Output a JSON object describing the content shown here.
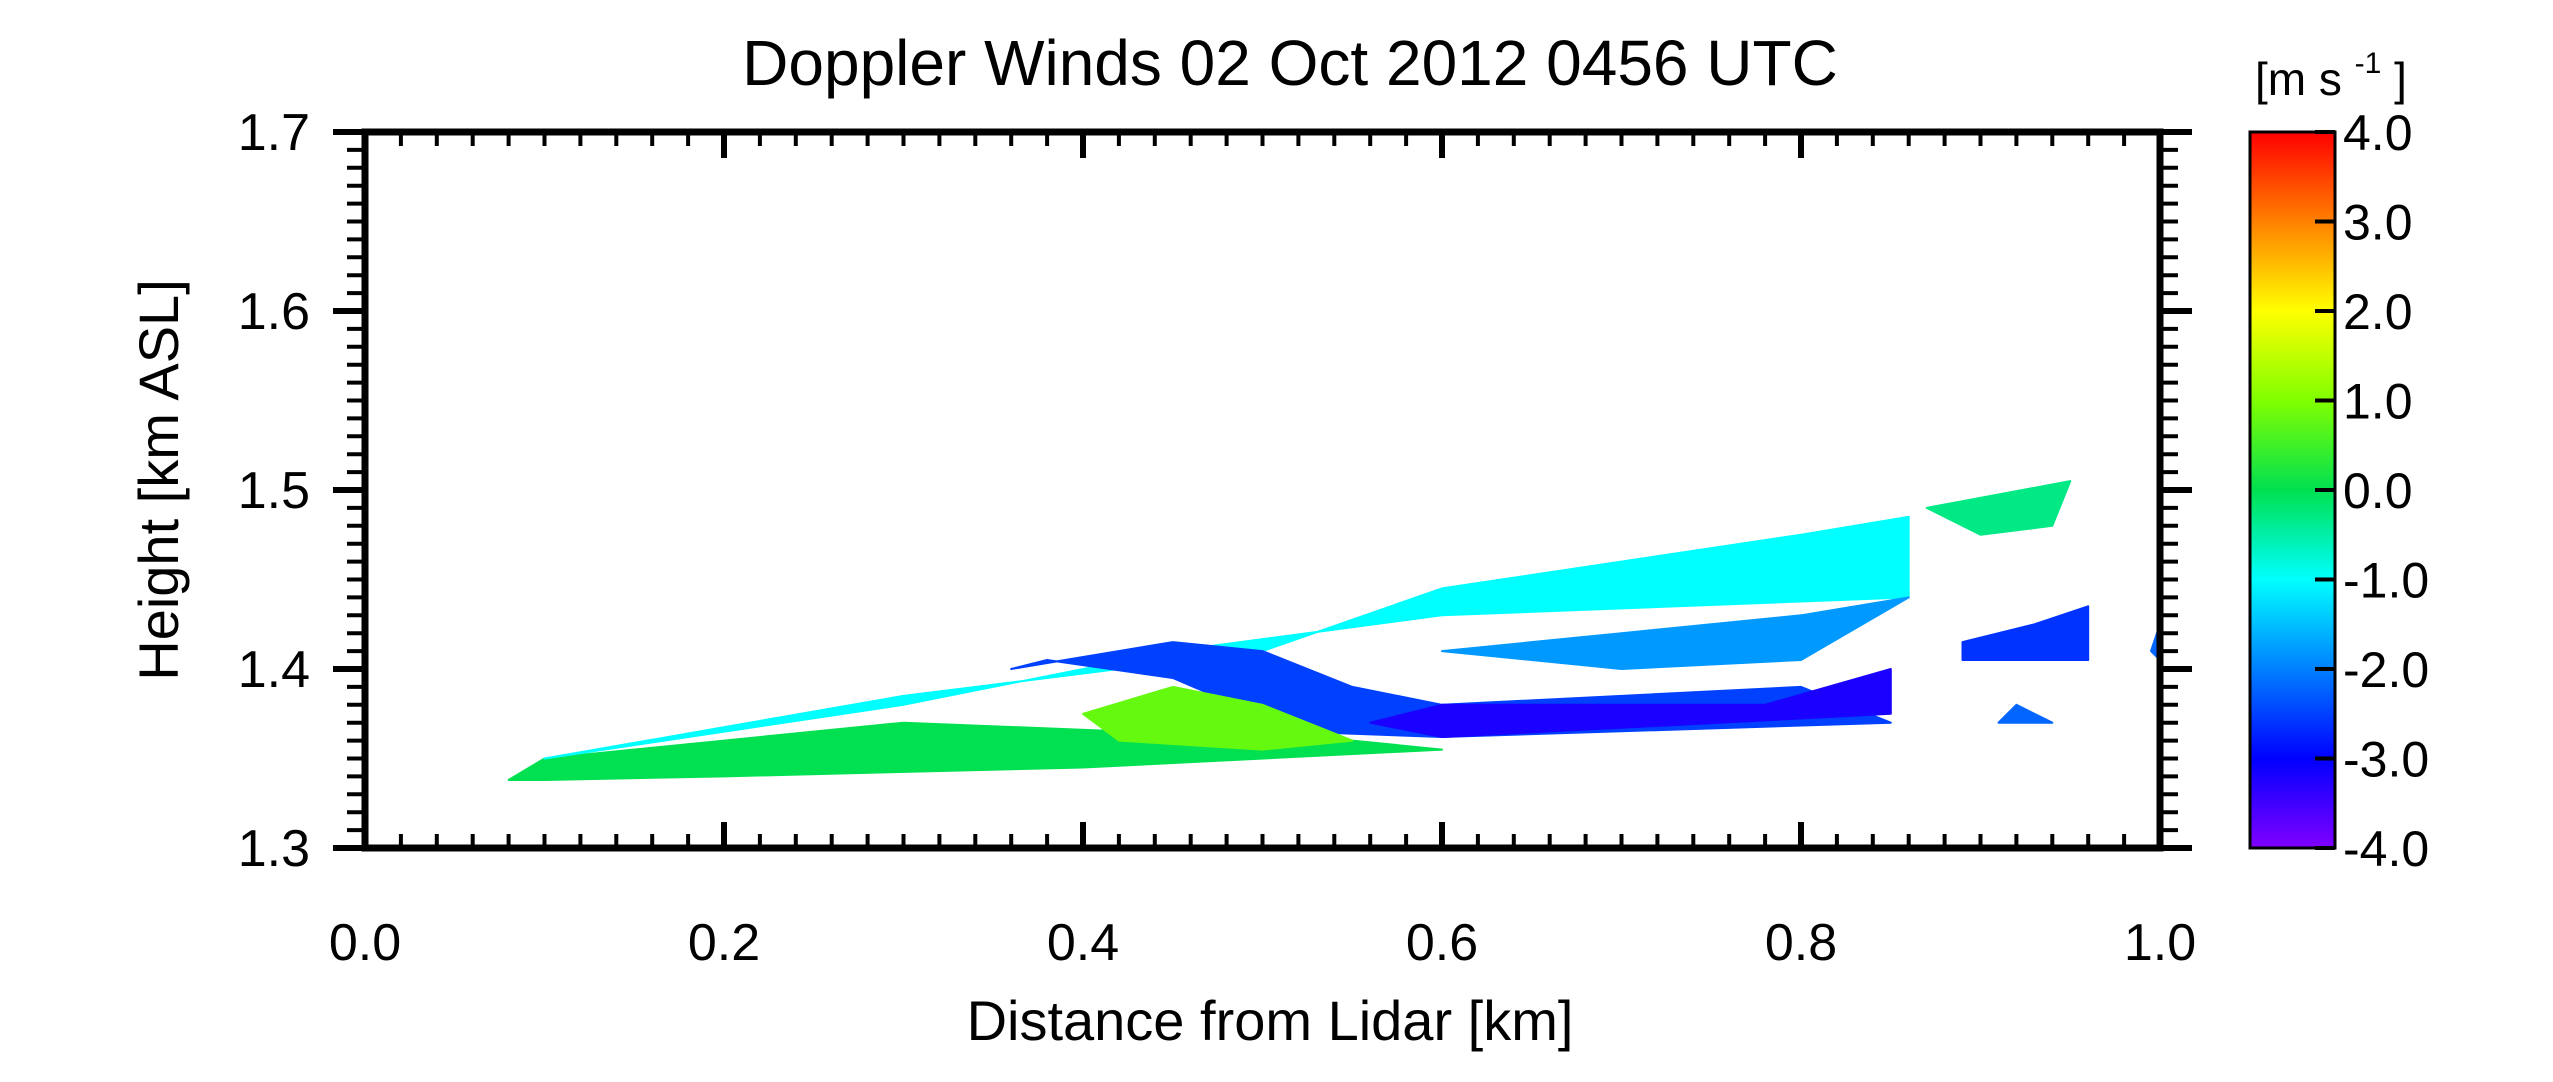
{
  "chart_data": {
    "type": "heatmap",
    "title": "Doppler Winds 02 Oct 2012 0456 UTC",
    "xlabel": "Distance from Lidar [km]",
    "ylabel": "Height [km ASL]",
    "xlim": [
      0.0,
      1.0
    ],
    "ylim": [
      1.3,
      1.7
    ],
    "x_ticks": [
      "0.0",
      "0.2",
      "0.4",
      "0.6",
      "0.8",
      "1.0"
    ],
    "y_ticks": [
      "1.3",
      "1.4",
      "1.5",
      "1.6",
      "1.7"
    ],
    "colorbar": {
      "label_main": "[m s",
      "label_sup": "-1",
      "label_end": "]",
      "range": [
        -4.0,
        4.0
      ],
      "ticks": [
        "4.0",
        "3.0",
        "2.0",
        "1.0",
        "0.0",
        "-1.0",
        "-2.0",
        "-3.0",
        "-4.0"
      ],
      "colors": [
        "#ff0000",
        "#ff8000",
        "#ffff00",
        "#80ff00",
        "#00e050",
        "#00ffff",
        "#0080ff",
        "#0000ff",
        "#8000ff"
      ]
    },
    "scan": {
      "description_free": true,
      "x_start": 0.08,
      "x_end": 0.96,
      "y_bottom_start": 1.338,
      "y_bottom_end": 1.362,
      "y_top_start": 1.342,
      "y_top_end": 1.5
    },
    "regions": [
      {
        "x": [
          0.08,
          0.1,
          0.3,
          0.55,
          0.6,
          0.4,
          0.2,
          0.1
        ],
        "y": [
          1.338,
          1.35,
          1.37,
          1.36,
          1.355,
          1.345,
          1.34,
          1.338
        ],
        "value": 0.0
      },
      {
        "x": [
          0.1,
          0.3,
          0.5,
          0.6,
          0.8,
          0.86,
          0.86,
          0.6,
          0.45,
          0.3,
          0.1
        ],
        "y": [
          1.35,
          1.385,
          1.41,
          1.445,
          1.475,
          1.485,
          1.44,
          1.43,
          1.41,
          1.38,
          1.35
        ],
        "value": -1.0
      },
      {
        "x": [
          0.36,
          0.45,
          0.5,
          0.55,
          0.6,
          0.8,
          0.85,
          0.6,
          0.52,
          0.45,
          0.38
        ],
        "y": [
          1.4,
          1.415,
          1.41,
          1.39,
          1.38,
          1.39,
          1.37,
          1.362,
          1.365,
          1.395,
          1.405
        ],
        "value": -2.5
      },
      {
        "x": [
          0.56,
          0.6,
          0.78,
          0.85,
          0.85,
          0.6
        ],
        "y": [
          1.37,
          1.38,
          1.38,
          1.4,
          1.375,
          1.362
        ],
        "value": -3.2
      },
      {
        "x": [
          0.4,
          0.45,
          0.5,
          0.55,
          0.5,
          0.42
        ],
        "y": [
          1.375,
          1.39,
          1.38,
          1.36,
          1.355,
          1.36
        ],
        "value": 0.8
      },
      {
        "x": [
          0.6,
          0.7,
          0.8,
          0.86,
          0.8,
          0.7
        ],
        "y": [
          1.41,
          1.42,
          1.43,
          1.44,
          1.405,
          1.4
        ],
        "value": -1.8
      },
      {
        "x": [
          0.89,
          0.96,
          0.96,
          0.93,
          0.89
        ],
        "y": [
          1.405,
          1.405,
          1.435,
          1.425,
          1.415
        ],
        "value": -2.6
      },
      {
        "x": [
          0.87,
          0.95,
          0.94,
          0.9
        ],
        "y": [
          1.49,
          1.505,
          1.48,
          1.475
        ],
        "value": -0.3
      },
      {
        "x": [
          0.91,
          0.94,
          0.92
        ],
        "y": [
          1.37,
          1.37,
          1.38
        ],
        "value": -2.2
      },
      {
        "x": [
          0.995,
          1.0,
          1.0
        ],
        "y": [
          1.41,
          1.405,
          1.425
        ],
        "value": -2.2
      }
    ]
  }
}
